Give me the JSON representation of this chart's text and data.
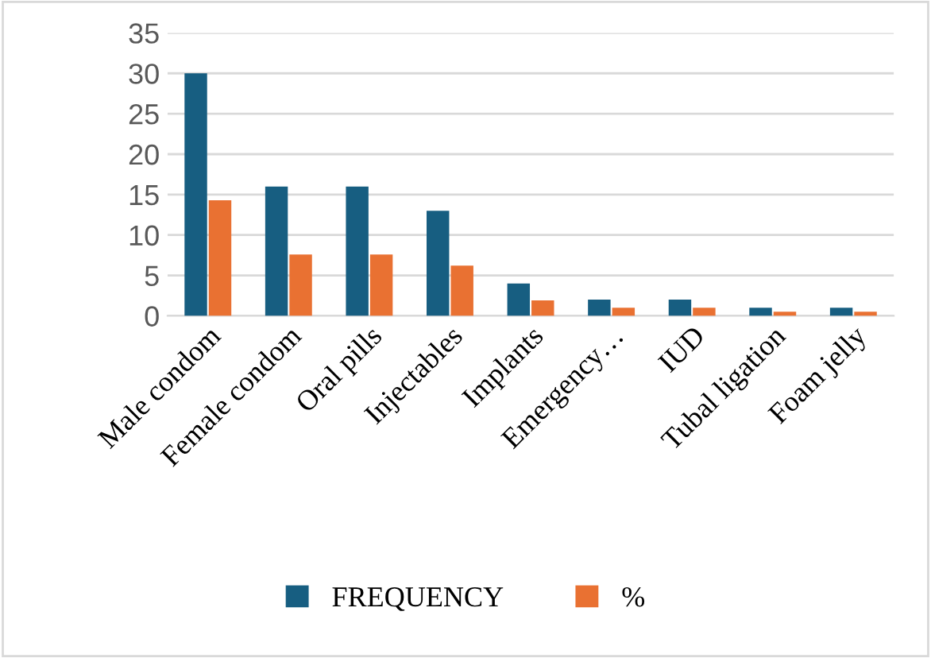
{
  "chart_data": {
    "type": "bar",
    "categories": [
      "Male condom",
      "Female condom",
      "Oral pills",
      "Injectables",
      "Implants",
      "Emergency…",
      "IUD",
      "Tubal ligation",
      "Foam jelly"
    ],
    "series": [
      {
        "name": "FREQUENCY",
        "color": "#175e81",
        "values": [
          30,
          16,
          16,
          13,
          4,
          2,
          2,
          1,
          1
        ]
      },
      {
        "name": "%",
        "color": "#e97132",
        "values": [
          14.3,
          7.6,
          7.6,
          6.2,
          1.9,
          1.0,
          1.0,
          0.5,
          0.5
        ]
      }
    ],
    "ylim": [
      0,
      35
    ],
    "yticks": [
      0,
      5,
      10,
      15,
      20,
      25,
      30,
      35
    ],
    "grid": "y",
    "legend": "bottom"
  }
}
